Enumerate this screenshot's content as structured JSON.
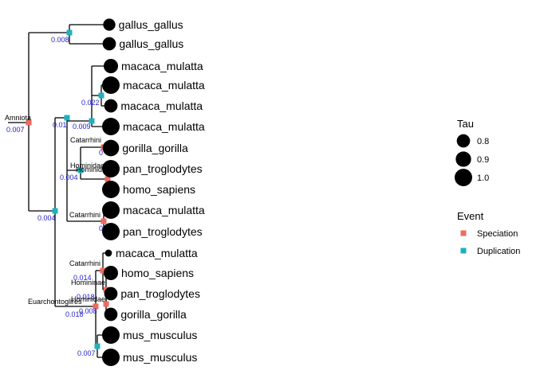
{
  "tree": {
    "tips": [
      {
        "label": "gallus_gallus",
        "tau": 0.75
      },
      {
        "label": "gallus_gallus",
        "tau": 0.8
      },
      {
        "label": "macaca_mulatta",
        "tau": 0.85
      },
      {
        "label": "macaca_mulatta",
        "tau": 1.0
      },
      {
        "label": "macaca_mulatta",
        "tau": 0.8
      },
      {
        "label": "macaca_mulatta",
        "tau": 1.0
      },
      {
        "label": "gorilla_gorilla",
        "tau": 0.95
      },
      {
        "label": "pan_troglodytes",
        "tau": 1.0
      },
      {
        "label": "homo_sapiens",
        "tau": 1.0
      },
      {
        "label": "macaca_mulatta",
        "tau": 1.0
      },
      {
        "label": "pan_troglodytes",
        "tau": 1.0
      },
      {
        "label": "macaca_mulatta",
        "tau": 0.5
      },
      {
        "label": "homo_sapiens",
        "tau": 0.85
      },
      {
        "label": "pan_troglodytes",
        "tau": 0.8
      },
      {
        "label": "gorilla_gorilla",
        "tau": 0.8
      },
      {
        "label": "mus_musculus",
        "tau": 1.0
      },
      {
        "label": "mus_musculus",
        "tau": 1.0
      }
    ],
    "internal_nodes": [
      {
        "id": "root",
        "name": "Amniota",
        "event": "Speciation",
        "support": "0.007"
      },
      {
        "id": "gallus_dup",
        "name": "",
        "event": "Duplication",
        "support": "0.008"
      },
      {
        "id": "mamm_dup",
        "name": "",
        "event": "Duplication",
        "support": "0.004"
      },
      {
        "id": "prim_dup",
        "name": "",
        "event": "Duplication",
        "support": "0.01"
      },
      {
        "id": "hom_dup",
        "name": "Hominidae",
        "event": "Duplication",
        "support": "0.004"
      },
      {
        "id": "cat_dup",
        "name": "",
        "event": "Duplication",
        "support": "0.009"
      },
      {
        "id": "cat_dup2",
        "name": "",
        "event": "Duplication",
        "support": "0.022"
      },
      {
        "id": "cat_a",
        "name": "Catarrhini",
        "event": "Speciation",
        "support": "0"
      },
      {
        "id": "hom_a",
        "name": "Hominidae",
        "event": "Speciation",
        "support": ""
      },
      {
        "id": "cat_b",
        "name": "Catarrhini",
        "event": "Speciation",
        "support": "0"
      },
      {
        "id": "euarch",
        "name": "Euarchontoglires",
        "event": "Speciation",
        "support": "0.018"
      },
      {
        "id": "cat_c",
        "name": "Catarrhini",
        "event": "Speciation",
        "support": "0.014"
      },
      {
        "id": "homin_c",
        "name": "Homininae",
        "event": "Speciation",
        "support": "0.018"
      },
      {
        "id": "hom_c",
        "name": "Hominidae",
        "event": "Speciation",
        "support": "0.008"
      },
      {
        "id": "mus_dup",
        "name": "",
        "event": "Duplication",
        "support": "0.007"
      }
    ]
  },
  "legend": {
    "tau_title": "Tau",
    "tau_items": [
      {
        "label": "0.8",
        "value": 0.8
      },
      {
        "label": "0.9",
        "value": 0.9
      },
      {
        "label": "1.0",
        "value": 1.0
      }
    ],
    "event_title": "Event",
    "event_items": [
      {
        "label": "Speciation",
        "color": "#ef6a5f"
      },
      {
        "label": "Duplication",
        "color": "#20b1bb"
      }
    ]
  },
  "colors": {
    "speciation": "#ef6a5f",
    "duplication": "#20b1bb",
    "support_text": "#1f1fc8"
  }
}
